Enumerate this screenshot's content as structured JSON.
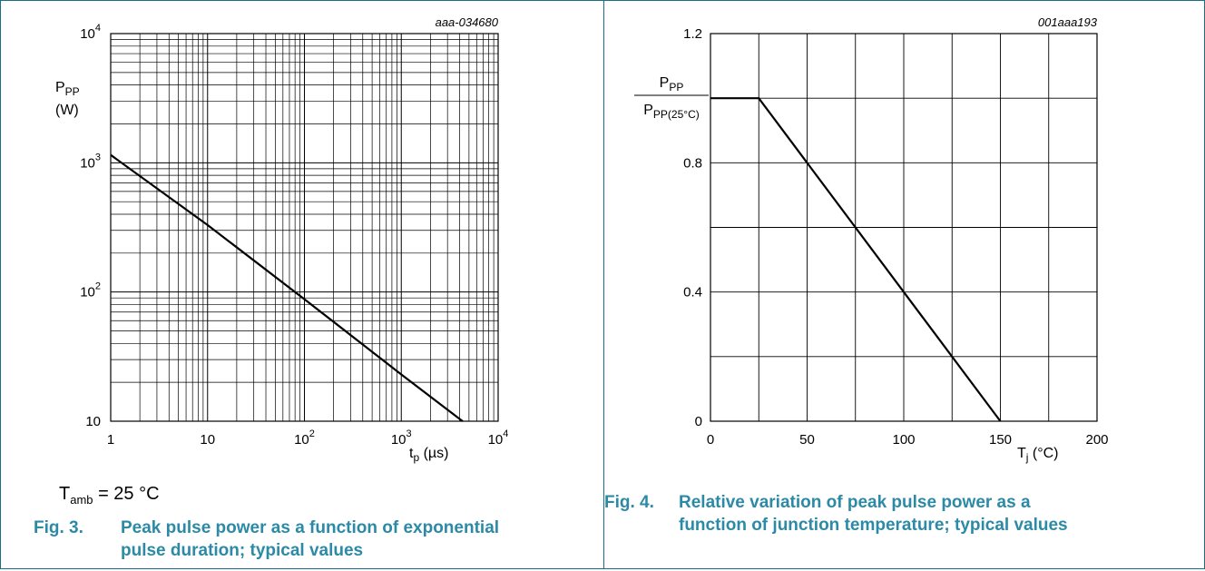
{
  "charts": [
    {
      "doc_code": "aaa-034680",
      "figure_number": "Fig. 3.",
      "caption_line1": "Peak pulse power as a function of exponential",
      "caption_line2": "pulse duration; typical values",
      "note_base": "T",
      "note_sub": "amb",
      "note_rest": " = 25 °C",
      "y_label_main": "P",
      "y_label_sub": "PP",
      "y_label_unit": "(W)",
      "x_label_main": "t",
      "x_label_sub": "p",
      "x_label_unit": " (µs)",
      "x_ticks": [
        {
          "value": 1,
          "base": "1",
          "exp": ""
        },
        {
          "value": 10,
          "base": "10",
          "exp": ""
        },
        {
          "value": 100,
          "base": "10",
          "exp": "2"
        },
        {
          "value": 1000,
          "base": "10",
          "exp": "3"
        },
        {
          "value": 10000,
          "base": "10",
          "exp": "4"
        }
      ],
      "y_ticks": [
        {
          "value": 10,
          "base": "10",
          "exp": ""
        },
        {
          "value": 100,
          "base": "10",
          "exp": "2"
        },
        {
          "value": 1000,
          "base": "10",
          "exp": "3"
        },
        {
          "value": 10000,
          "base": "10",
          "exp": "4"
        }
      ]
    },
    {
      "doc_code": "001aaa193",
      "figure_number": "Fig. 4.",
      "caption_line1": "Relative variation of peak pulse power as a",
      "caption_line2": "function of junction temperature; typical values",
      "y_label_num_main": "P",
      "y_label_num_sub": "PP",
      "y_label_den_main": "P",
      "y_label_den_sub": "PP(25°C)",
      "x_label_main": "T",
      "x_label_sub": "j",
      "x_label_unit": " (°C)",
      "x_ticks": [
        "0",
        "50",
        "100",
        "150",
        "200"
      ],
      "y_ticks": [
        "0",
        "0.4",
        "0.8",
        "1.2"
      ]
    }
  ],
  "chart_data": [
    {
      "type": "line",
      "x_scale": "log",
      "y_scale": "log",
      "xlim": [
        1,
        10000
      ],
      "ylim": [
        10,
        10000
      ],
      "grid": true,
      "series": [
        {
          "x": [
            1,
            10,
            100,
            1000,
            4300
          ],
          "y": [
            1150,
            330,
            88,
            23,
            10
          ]
        }
      ],
      "line_color": "#000000"
    },
    {
      "type": "line",
      "x_scale": "linear",
      "y_scale": "linear",
      "xlim": [
        0,
        200
      ],
      "ylim": [
        0,
        1.2
      ],
      "x_grid_step": 25,
      "y_grid_step": 0.2,
      "grid": true,
      "series": [
        {
          "x": [
            0,
            25,
            150
          ],
          "y": [
            1.0,
            1.0,
            0
          ]
        }
      ],
      "line_color": "#000000"
    }
  ]
}
